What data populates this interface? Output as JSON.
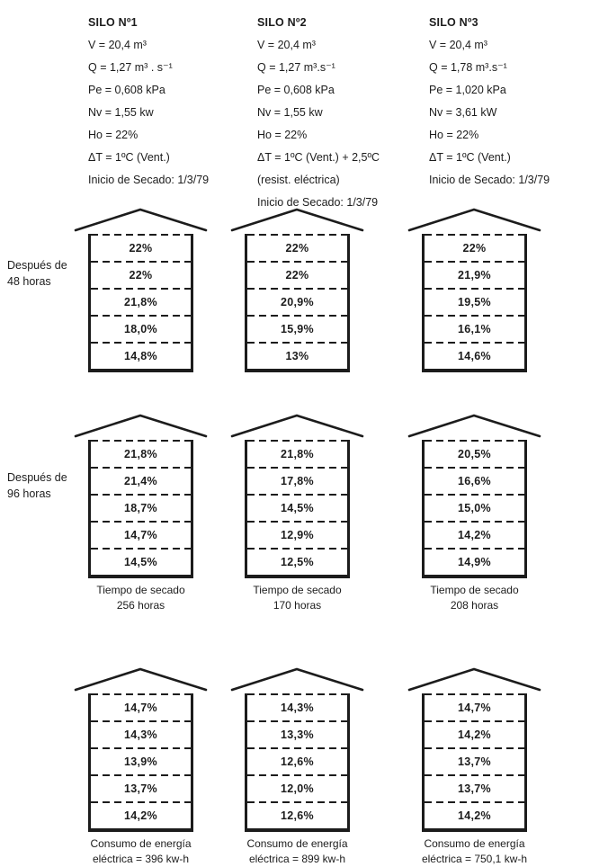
{
  "colors": {
    "ink": "#1c1c1c",
    "paper": "#ffffff"
  },
  "specs": [
    {
      "title": "SILO Nº1",
      "lines": [
        "V = 20,4 m³",
        "Q = 1,27 m³ . s⁻¹",
        "Pe = 0,608 kPa",
        "Nv = 1,55 kw",
        "Ho = 22%",
        "ΔT = 1ºC (Vent.)",
        "Inicio de Secado: 1/3/79"
      ]
    },
    {
      "title": "SILO Nº2",
      "lines": [
        "V = 20,4 m³",
        "Q = 1,27 m³.s⁻¹",
        "Pe = 0,608 kPa",
        "Nv = 1,55 kw",
        "Ho = 22%",
        "ΔT = 1ºC (Vent.) + 2,5ºC",
        "(resist. eléctrica)",
        "Inicio de Secado: 1/3/79"
      ]
    },
    {
      "title": "SILO Nº3",
      "lines": [
        "V = 20,4 m³",
        "Q = 1,78 m³.s⁻¹",
        "Pe = 1,020 kPa",
        "Nv = 3,61 kW",
        "Ho = 22%",
        "ΔT = 1ºC (Vent.)",
        "Inicio de Secado: 1/3/79"
      ]
    }
  ],
  "rows": [
    {
      "label": [
        "Después de",
        "48 horas"
      ],
      "silos": [
        {
          "layers": [
            "22%",
            "22%",
            "21,8%",
            "18,0%",
            "14,8%"
          ],
          "caption": []
        },
        {
          "layers": [
            "22%",
            "22%",
            "20,9%",
            "15,9%",
            "13%"
          ],
          "caption": []
        },
        {
          "layers": [
            "22%",
            "21,9%",
            "19,5%",
            "16,1%",
            "14,6%"
          ],
          "caption": []
        }
      ]
    },
    {
      "label": [
        "Después de",
        "96 horas"
      ],
      "silos": [
        {
          "layers": [
            "21,8%",
            "21,4%",
            "18,7%",
            "14,7%",
            "14,5%"
          ],
          "caption": [
            "Tiempo de secado",
            "256 horas"
          ]
        },
        {
          "layers": [
            "21,8%",
            "17,8%",
            "14,5%",
            "12,9%",
            "12,5%"
          ],
          "caption": [
            "Tiempo de secado",
            "170 horas"
          ]
        },
        {
          "layers": [
            "20,5%",
            "16,6%",
            "15,0%",
            "14,2%",
            "14,9%"
          ],
          "caption": [
            "Tiempo de secado",
            "208 horas"
          ]
        }
      ]
    },
    {
      "label": null,
      "silos": [
        {
          "layers": [
            "14,7%",
            "14,3%",
            "13,9%",
            "13,7%",
            "14,2%"
          ],
          "caption": [
            "Consumo de energía",
            "eléctrica = 396 kw-h"
          ]
        },
        {
          "layers": [
            "14,3%",
            "13,3%",
            "12,6%",
            "12,0%",
            "12,6%"
          ],
          "caption": [
            "Consumo de energía",
            "eléctrica = 899 kw-h"
          ]
        },
        {
          "layers": [
            "14,7%",
            "14,2%",
            "13,7%",
            "13,7%",
            "14,2%"
          ],
          "caption": [
            "Consumo de energía",
            "eléctrica = 750,1 kw-h"
          ]
        }
      ]
    }
  ]
}
